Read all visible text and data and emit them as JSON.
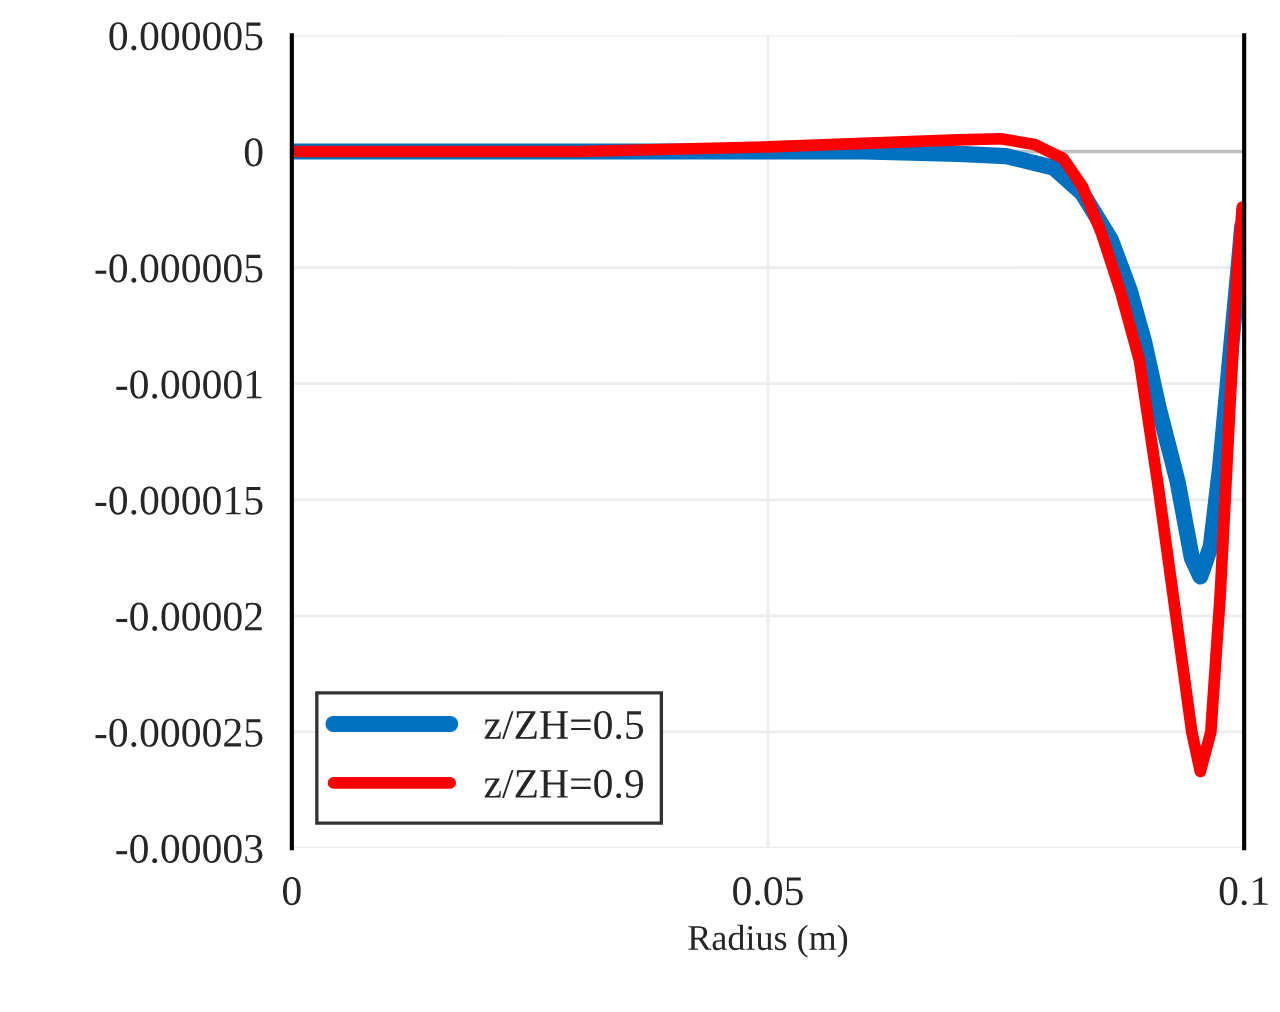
{
  "chart_data": {
    "type": "line",
    "xlabel": "Radius (m)",
    "xlim": [
      0,
      0.1
    ],
    "ylim": [
      -3e-05,
      5e-06
    ],
    "xticks": [
      0,
      0.05,
      0.1
    ],
    "yticks": [
      {
        "value": 5e-06,
        "label": "0.000005"
      },
      {
        "value": 0,
        "label": "0"
      },
      {
        "value": -5e-06,
        "label": "-0.000005"
      },
      {
        "value": -1e-05,
        "label": "-0.00001"
      },
      {
        "value": -1.5e-05,
        "label": "-0.000015"
      },
      {
        "value": -2e-05,
        "label": "-0.00002"
      },
      {
        "value": -2.5e-05,
        "label": "-0.000025"
      },
      {
        "value": -3e-05,
        "label": "-0.00003"
      }
    ],
    "grid": true,
    "legend": "bottom left",
    "marker": "none",
    "line_style": "solid",
    "ref_lines": [
      {
        "axis": "y",
        "value": 0,
        "color": "#bfbfbf"
      }
    ],
    "series": [
      {
        "name": "z/ZH=0.5",
        "color": "#0070c0",
        "x": [
          0,
          0.02,
          0.04,
          0.05,
          0.06,
          0.07,
          0.075,
          0.08,
          0.083,
          0.086,
          0.088,
          0.0895,
          0.091,
          0.093,
          0.0945,
          0.0954,
          0.0965,
          0.0975,
          0.0985,
          0.0993,
          0.0998
        ],
        "values": [
          0,
          0,
          0,
          0,
          0,
          -1e-07,
          -2e-07,
          -7e-07,
          -1.8e-06,
          -3.8e-06,
          -6e-06,
          -8.2e-06,
          -1.1e-05,
          -1.42e-05,
          -1.75e-05,
          -1.83e-05,
          -1.7e-05,
          -1.35e-05,
          -9e-06,
          -5.5e-06,
          -3.2e-06
        ]
      },
      {
        "name": "z/ZH=0.9",
        "color": "#ff0000",
        "x": [
          0,
          0.03,
          0.05,
          0.06,
          0.07,
          0.0745,
          0.078,
          0.081,
          0.083,
          0.085,
          0.087,
          0.089,
          0.091,
          0.093,
          0.0945,
          0.0954,
          0.0965,
          0.0975,
          0.0985,
          0.0993,
          0.0998
        ],
        "values": [
          0,
          0,
          2e-07,
          3.5e-07,
          5e-07,
          5.5e-07,
          3e-07,
          -3e-07,
          -1.5e-06,
          -3.5e-06,
          -6e-06,
          -9e-06,
          -1.45e-05,
          -2.05e-05,
          -2.5e-05,
          -2.67e-05,
          -2.5e-05,
          -1.9e-05,
          -1.1e-05,
          -5e-06,
          -2.4e-06
        ]
      }
    ]
  }
}
